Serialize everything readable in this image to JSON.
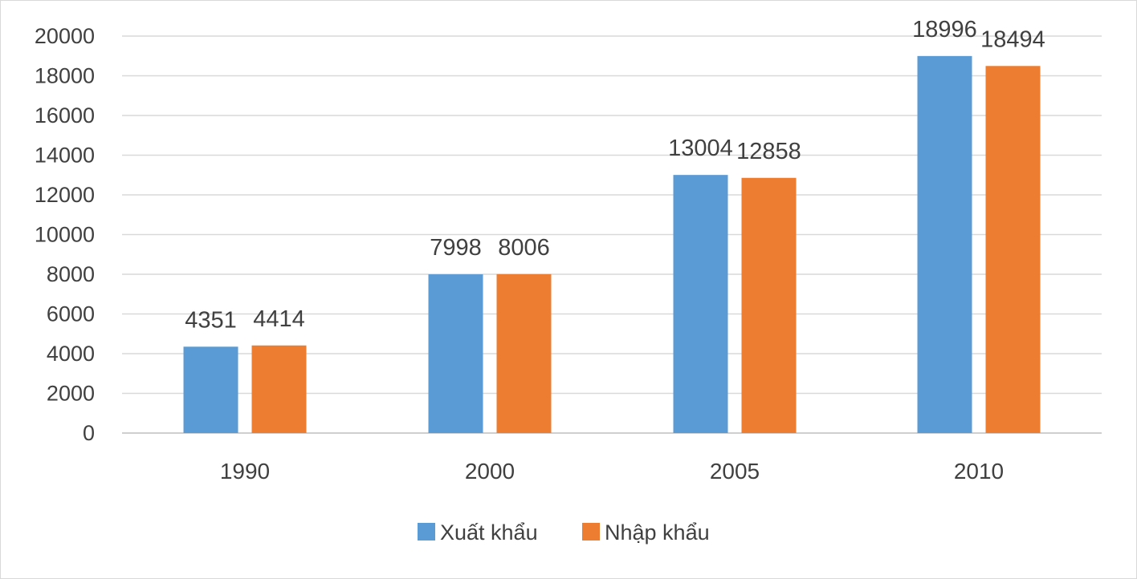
{
  "chart_data": {
    "type": "bar",
    "categories": [
      "1990",
      "2000",
      "2005",
      "2010"
    ],
    "series": [
      {
        "name": "Xuất khẩu",
        "values": [
          4351,
          7998,
          13004,
          18996
        ],
        "color": "#5b9bd5"
      },
      {
        "name": "Nhập khẩu",
        "values": [
          4414,
          8006,
          12858,
          18494
        ],
        "color": "#ed7d31"
      }
    ],
    "ylim": [
      0,
      20000
    ],
    "yticks": [
      0,
      2000,
      4000,
      6000,
      8000,
      10000,
      12000,
      14000,
      16000,
      18000,
      20000
    ],
    "grid": true,
    "legend_position": "bottom",
    "title": "",
    "xlabel": "",
    "ylabel": ""
  }
}
